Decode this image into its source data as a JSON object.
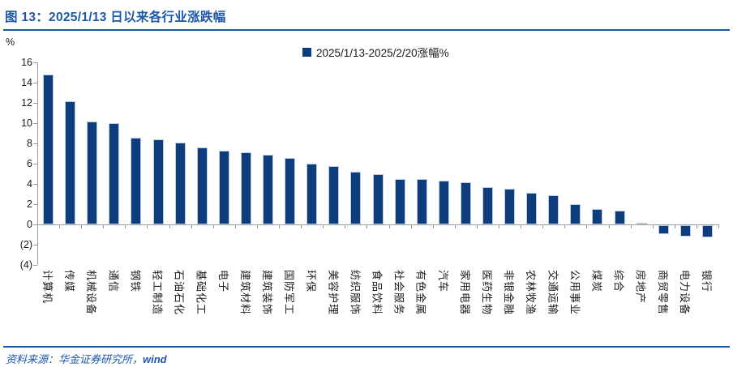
{
  "header": {
    "title": "图 13：2025/1/13 日以来各行业涨跌幅"
  },
  "chart_data": {
    "type": "bar",
    "title": "2025/1/13 日以来各行业涨跌幅",
    "unit_label": "%",
    "legend": [
      "2025/1/13-2025/2/20涨幅%"
    ],
    "legend_position": "top-center",
    "grid": false,
    "categories": [
      "计算机",
      "传媒",
      "机械设备",
      "通信",
      "钢铁",
      "轻工制造",
      "石油石化",
      "基础化工",
      "电子",
      "建筑材料",
      "建筑装饰",
      "国防军工",
      "环保",
      "美容护理",
      "纺织服饰",
      "食品饮料",
      "社会服务",
      "有色金属",
      "汽车",
      "家用电器",
      "医药生物",
      "非银金融",
      "农林牧渔",
      "交通运输",
      "公用事业",
      "煤炭",
      "综合",
      "房地产",
      "商贸零售",
      "电力设备",
      "银行"
    ],
    "values": [
      14.8,
      12.2,
      10.2,
      10.0,
      8.6,
      8.4,
      8.1,
      7.6,
      7.3,
      7.1,
      6.9,
      6.6,
      6.0,
      5.8,
      5.2,
      5.0,
      4.5,
      4.5,
      4.3,
      4.2,
      3.7,
      3.5,
      3.1,
      2.9,
      2.0,
      1.5,
      1.4,
      0.2,
      -0.9,
      -1.1,
      -1.2
    ],
    "ylim": [
      -4,
      16
    ],
    "yticks": [
      16,
      14,
      12,
      10,
      8,
      6,
      4,
      2,
      0,
      -2,
      -4
    ],
    "ytick_labels": [
      "16",
      "14",
      "12",
      "10",
      "8",
      "6",
      "4",
      "2",
      "0",
      "(2)",
      "(4)"
    ],
    "xlabel": "",
    "ylabel": "%",
    "bar_color": "#0d3d7b"
  },
  "footer": {
    "source_prefix": "资料来源：华金证券研究所，",
    "source_suffix": "wind"
  },
  "colors": {
    "accent_blue": "#1d57a8",
    "bar_navy": "#0d3d7b",
    "axis_gray": "#9c9c9c"
  }
}
